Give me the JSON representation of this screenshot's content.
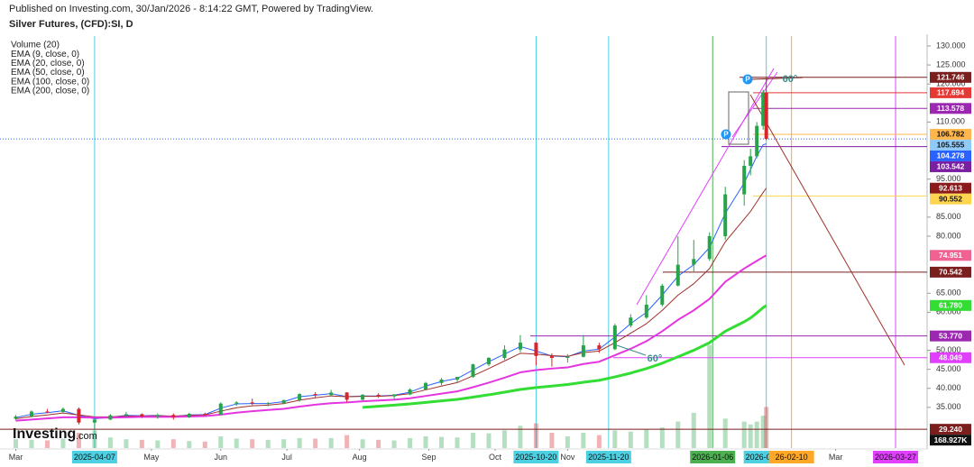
{
  "chart_data": {
    "type": "candlestick",
    "header": "Published on Investing.com, 30/Jan/2026 - 8:14:22 GMT, Powered by TradingView.",
    "title": "Silver Futures, (CFD):SI, D",
    "legend": [
      "Volume (20)",
      "EMA (9, close, 0)",
      "EMA (20, close, 0)",
      "EMA (50, close, 0)",
      "EMA (100, close, 0)",
      "EMA (200, close, 0)"
    ],
    "watermark": {
      "brand": "Investing",
      "suffix": ".com"
    },
    "annotations": [
      "60°",
      "60°",
      "P",
      "P"
    ],
    "up_color": "#27a34a",
    "down_color": "#d7262b",
    "x": [
      "2025-03-03",
      "2025-03-10",
      "2025-03-17",
      "2025-03-24",
      "2025-03-31",
      "2025-04-07",
      "2025-04-14",
      "2025-04-21",
      "2025-04-28",
      "2025-05-05",
      "2025-05-12",
      "2025-05-19",
      "2025-05-26",
      "2025-06-02",
      "2025-06-09",
      "2025-06-16",
      "2025-06-23",
      "2025-06-30",
      "2025-07-07",
      "2025-07-14",
      "2025-07-21",
      "2025-07-28",
      "2025-08-04",
      "2025-08-11",
      "2025-08-18",
      "2025-08-25",
      "2025-09-01",
      "2025-09-08",
      "2025-09-15",
      "2025-09-22",
      "2025-09-29",
      "2025-10-06",
      "2025-10-13",
      "2025-10-20",
      "2025-10-27",
      "2025-11-03",
      "2025-11-10",
      "2025-11-17",
      "2025-11-24",
      "2025-12-01",
      "2025-12-08",
      "2025-12-15",
      "2025-12-22",
      "2025-12-29",
      "2026-01-05",
      "2026-01-12",
      "2026-01-20",
      "2026-01-22",
      "2026-01-26",
      "2026-01-28",
      "2026-01-29"
    ],
    "open": [
      32.0,
      32.6,
      33.9,
      33.8,
      34.6,
      31.0,
      31.8,
      32.9,
      33.2,
      32.6,
      33.0,
      32.4,
      33.3,
      33.1,
      36.0,
      36.3,
      36.0,
      36.1,
      36.9,
      38.5,
      38.2,
      38.9,
      37.0,
      38.3,
      37.9,
      38.4,
      39.7,
      41.4,
      42.3,
      43.0,
      46.3,
      48.0,
      50.2,
      52.0,
      48.5,
      48.0,
      48.3,
      51.3,
      50.3,
      56.5,
      58.6,
      62.0,
      67.0,
      72.5,
      74.0,
      80.0,
      91.0,
      98.5,
      101.0,
      109.0,
      117.7
    ],
    "high": [
      33.0,
      34.2,
      34.6,
      35.0,
      35.0,
      32.0,
      33.2,
      33.8,
      33.4,
      33.4,
      33.4,
      33.6,
      33.6,
      36.3,
      36.6,
      37.3,
      36.4,
      37.0,
      38.7,
      39.0,
      39.6,
      39.0,
      38.5,
      38.7,
      38.5,
      40.0,
      41.7,
      42.7,
      43.0,
      46.5,
      48.2,
      51.3,
      54.0,
      52.2,
      49.2,
      49.0,
      54.0,
      52.0,
      57.0,
      59.5,
      64.5,
      67.5,
      80.0,
      79.0,
      81.0,
      93.0,
      100.0,
      103.0,
      110.0,
      118.5,
      121.7
    ],
    "low": [
      31.6,
      32.4,
      33.5,
      33.6,
      30.5,
      29.4,
      31.6,
      32.4,
      32.2,
      32.0,
      31.8,
      32.2,
      32.8,
      33.0,
      35.4,
      35.6,
      35.3,
      35.8,
      36.5,
      37.6,
      37.9,
      36.3,
      36.9,
      37.5,
      37.1,
      38.2,
      39.5,
      40.8,
      41.5,
      42.8,
      45.8,
      47.5,
      49.5,
      46.0,
      45.7,
      46.8,
      48.1,
      49.3,
      50.0,
      56.0,
      58.3,
      61.5,
      66.8,
      70.5,
      73.5,
      79.0,
      88.0,
      96.0,
      100.5,
      108.0,
      105.2
    ],
    "close": [
      32.6,
      33.9,
      33.8,
      34.6,
      31.0,
      31.8,
      32.9,
      33.2,
      32.6,
      33.0,
      32.4,
      33.3,
      33.1,
      36.0,
      36.3,
      36.0,
      36.1,
      36.9,
      38.5,
      38.2,
      38.9,
      37.0,
      38.3,
      37.9,
      38.4,
      39.7,
      41.4,
      42.3,
      43.0,
      46.3,
      48.0,
      50.2,
      52.0,
      48.5,
      48.0,
      48.3,
      51.3,
      50.3,
      56.5,
      58.6,
      62.0,
      67.0,
      72.5,
      74.0,
      80.0,
      91.0,
      98.5,
      101.0,
      109.0,
      117.7,
      105.555
    ],
    "volume": [
      150000,
      140000,
      130000,
      160000,
      260000,
      300000,
      180000,
      150000,
      140000,
      130000,
      150000,
      120000,
      110000,
      200000,
      160000,
      150000,
      140000,
      150000,
      170000,
      160000,
      170000,
      220000,
      150000,
      140000,
      130000,
      170000,
      200000,
      190000,
      180000,
      260000,
      250000,
      300000,
      380000,
      420000,
      260000,
      200000,
      260000,
      220000,
      300000,
      280000,
      320000,
      350000,
      450000,
      600000,
      1750000,
      500000,
      450000,
      400000,
      450000,
      550000,
      700000
    ],
    "series": [
      {
        "color": "#2962ff",
        "width": 1,
        "values": [
          32.3,
          33.2,
          33.6,
          34.1,
          32.9,
          32.0,
          32.4,
          32.9,
          32.8,
          32.9,
          32.6,
          33.0,
          33.1,
          34.8,
          35.9,
          36.0,
          36.0,
          36.5,
          37.8,
          38.2,
          38.6,
          37.8,
          38.0,
          38.0,
          38.2,
          39.0,
          40.6,
          41.8,
          42.6,
          44.8,
          47.0,
          49.0,
          51.0,
          49.8,
          48.5,
          48.3,
          49.8,
          50.3,
          53.5,
          57.0,
          60.0,
          64.5,
          69.5,
          72.5,
          77.0,
          86.0,
          94.0,
          97.5,
          101.0,
          104.0,
          104.278
        ]
      },
      {
        "color": "#a0302b",
        "width": 1,
        "values": [
          32.0,
          32.6,
          33.0,
          33.5,
          33.0,
          32.5,
          32.5,
          32.7,
          32.7,
          32.8,
          32.7,
          32.9,
          33.0,
          34.0,
          34.9,
          35.4,
          35.6,
          36.0,
          36.9,
          37.5,
          38.0,
          37.8,
          37.9,
          37.9,
          38.1,
          38.6,
          39.6,
          40.6,
          41.5,
          43.3,
          45.2,
          47.2,
          49.2,
          49.0,
          48.6,
          48.4,
          49.4,
          49.8,
          52.0,
          54.5,
          57.0,
          60.5,
          64.5,
          67.5,
          71.5,
          78.5,
          84.5,
          86.5,
          89.0,
          91.5,
          92.613
        ]
      },
      {
        "color": "#e535e0",
        "width": 2,
        "values": [
          31.5,
          31.8,
          32.1,
          32.4,
          32.4,
          32.3,
          32.3,
          32.4,
          32.5,
          32.5,
          32.5,
          32.6,
          32.7,
          33.1,
          33.6,
          34.0,
          34.3,
          34.6,
          35.2,
          35.7,
          36.1,
          36.3,
          36.6,
          36.8,
          37.0,
          37.4,
          38.0,
          38.6,
          39.2,
          40.3,
          41.5,
          42.8,
          44.2,
          44.8,
          45.2,
          45.5,
          46.4,
          47.0,
          48.7,
          50.4,
          52.4,
          55.0,
          58.0,
          60.5,
          63.5,
          68.0,
          71.5,
          72.5,
          73.5,
          74.5,
          74.951
        ]
      },
      {
        "color": "#33dd33",
        "width": 3,
        "values": [
          null,
          null,
          null,
          null,
          null,
          null,
          null,
          null,
          null,
          null,
          null,
          null,
          null,
          null,
          null,
          null,
          null,
          null,
          null,
          null,
          null,
          null,
          35.0,
          35.3,
          35.6,
          35.9,
          36.3,
          36.7,
          37.1,
          37.7,
          38.3,
          39.0,
          39.7,
          40.2,
          40.6,
          41.0,
          41.6,
          42.1,
          43.0,
          44.0,
          45.2,
          46.6,
          48.3,
          50.0,
          52.0,
          55.0,
          57.5,
          58.5,
          59.8,
          61.2,
          61.78
        ]
      }
    ],
    "xlim": [
      "2025-02-24",
      "2026-04-10"
    ],
    "xticks": [
      {
        "value": "2025-03-03",
        "label": "Mar"
      },
      {
        "value": "2025-05-01",
        "label": "May"
      },
      {
        "value": "2025-06-02",
        "label": "Jun"
      },
      {
        "value": "2025-07-01",
        "label": "Jul"
      },
      {
        "value": "2025-08-01",
        "label": "Aug"
      },
      {
        "value": "2025-09-02",
        "label": "Sep"
      },
      {
        "value": "2025-10-01",
        "label": "Oct"
      },
      {
        "value": "2025-11-03",
        "label": "Nov"
      },
      {
        "value": "2026-03-02",
        "label": "Mar"
      }
    ],
    "ylim": [
      24.3,
      132.6
    ],
    "yticks": [
      {
        "value": 130,
        "label": "130.000"
      },
      {
        "value": 125,
        "label": "125.000"
      },
      {
        "value": 120,
        "label": "120.000"
      },
      {
        "value": 110,
        "label": "110.000"
      },
      {
        "value": 95,
        "label": "95.000"
      },
      {
        "value": 85,
        "label": "85.000"
      },
      {
        "value": 80,
        "label": "80.000"
      },
      {
        "value": 65,
        "label": "65.000"
      },
      {
        "value": 60,
        "label": "60.000"
      },
      {
        "value": 50,
        "label": "50.000"
      },
      {
        "value": 45,
        "label": "45.000"
      },
      {
        "value": 40,
        "label": "40.000"
      },
      {
        "value": 35,
        "label": "35.000"
      }
    ],
    "volume_lim": [
      0,
      7000000
    ],
    "volume_level": {
      "value": 168927,
      "label": "168.927K",
      "color": "#111111"
    },
    "price_levels": [
      {
        "value": 121.746,
        "color": "#7b1e1e"
      },
      {
        "value": 117.694,
        "color": "#e53935"
      },
      {
        "value": 113.578,
        "color": "#9c27b0"
      },
      {
        "value": 106.782,
        "color": "#ffb74d"
      },
      {
        "value": 105.555,
        "color": "#90caf9"
      },
      {
        "value": 104.278,
        "color": "#2962ff"
      },
      {
        "value": 103.542,
        "color": "#7b1fa2"
      },
      {
        "value": 92.613,
        "color": "#8b1a1a"
      },
      {
        "value": 90.552,
        "color": "#ffd54f"
      },
      {
        "value": 74.951,
        "color": "#f06292"
      },
      {
        "value": 70.542,
        "color": "#7b1e1e"
      },
      {
        "value": 61.78,
        "label": "61.780",
        "color": "#33dd33"
      },
      {
        "value": 53.77,
        "label": "53.770",
        "color": "#9c27b0"
      },
      {
        "value": 48.049,
        "color": "#e040fb"
      },
      {
        "value": 29.24,
        "label": "29.240",
        "color": "#7b1e1e"
      }
    ],
    "date_markers": [
      {
        "x": "2025-04-07",
        "color": "#4dd0e1"
      },
      {
        "x": "2025-10-20",
        "color": "#4dd0e1"
      },
      {
        "x": "2025-11-20",
        "color": "#4dd0e1"
      },
      {
        "x": "2026-01-06",
        "color": "#4caf50"
      },
      {
        "x": "2026-01-29",
        "color": "#4dd0e1"
      },
      {
        "x": "2026-02-10",
        "label": "26-02-10",
        "color": "#ffa726"
      },
      {
        "x": "2026-03-27",
        "color": "#e040fb"
      }
    ]
  }
}
